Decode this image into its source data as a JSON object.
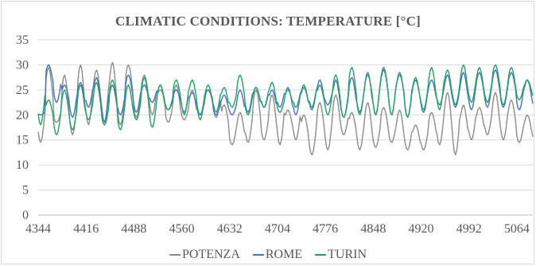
{
  "chart_data": {
    "type": "line",
    "title": "CLIMATIC CONDITIONS: TEMPERATURE [°C]",
    "xlabel": "",
    "ylabel": "",
    "xlim": [
      4344,
      5088
    ],
    "ylim": [
      0,
      35
    ],
    "grid": true,
    "legend_position": "bottom",
    "x_ticks": [
      "4344",
      "4416",
      "4488",
      "4560",
      "4632",
      "4704",
      "4776",
      "4848",
      "4920",
      "4992",
      "5064"
    ],
    "y_ticks": [
      "0",
      "5",
      "10",
      "15",
      "20",
      "25",
      "30",
      "35"
    ],
    "colors": {
      "POTENZA": "#8c8c8c",
      "ROME": "#4472c4",
      "TURIN": "#21a363"
    },
    "daily_extremes_note_free": true,
    "series": [
      {
        "name": "POTENZA",
        "daily_min": [
          14.5,
          19,
          18.5,
          15.5,
          16,
          16.5,
          18,
          19,
          18.5,
          17.5,
          18,
          21,
          19.5,
          20.5,
          20,
          22,
          18.5,
          17.5,
          19,
          18,
          20,
          21,
          19.5,
          16,
          14,
          13.5,
          14.5,
          16,
          15,
          14.5,
          14,
          16,
          15,
          13.5,
          12,
          14,
          13,
          15,
          16,
          14.5,
          13,
          12.5,
          13.5,
          15,
          14.5,
          12.5,
          13,
          12.5,
          13,
          14.5,
          14,
          13,
          12,
          13.5,
          15,
          15.5,
          16,
          14.5,
          15,
          15.5,
          14.5,
          14.5
        ],
        "daily_max": [
          25,
          29.5,
          22,
          28,
          27,
          30,
          30.5,
          29,
          31,
          30.5,
          27.5,
          30,
          27,
          28,
          28.5,
          25,
          24,
          26,
          23,
          25,
          24,
          25,
          25.5,
          22,
          20,
          20.5,
          23,
          25,
          22,
          24,
          25.5,
          21,
          23.5,
          20,
          21,
          22.5,
          23,
          24,
          22,
          20.5,
          22,
          22.5,
          20,
          21.5,
          20,
          21,
          19.5,
          18,
          19,
          20.5,
          24,
          24.5,
          25,
          22,
          23,
          21.5,
          23,
          24.5,
          24,
          23,
          20.5,
          20
        ]
      },
      {
        "name": "ROME",
        "daily_min": [
          20,
          24.5,
          22.5,
          21,
          19.5,
          20,
          21.5,
          19,
          18.5,
          19,
          20,
          21,
          20.5,
          21.5,
          22.5,
          19.5,
          21,
          21.5,
          20.5,
          20,
          20,
          22,
          20,
          19.5,
          20,
          19,
          20.5,
          21,
          21.5,
          20,
          21.5,
          19.5,
          20,
          20.5,
          21,
          20.5,
          22,
          19,
          19.5,
          20,
          20.5,
          19.5,
          20,
          21.5,
          20,
          21,
          19.5,
          21,
          20.5,
          21.5,
          22,
          21,
          21.5,
          20.5,
          21,
          22,
          21.5,
          22,
          21.5,
          22.5,
          21,
          21
        ],
        "daily_max": [
          21,
          30,
          29,
          26,
          27,
          26.5,
          28,
          27.5,
          28,
          26,
          26,
          28,
          27.5,
          26,
          26.5,
          26,
          24,
          25,
          26,
          24.5,
          26,
          25,
          24,
          24,
          23.5,
          25,
          27,
          25.5,
          26,
          25,
          26.5,
          25.5,
          27,
          25.5,
          27.5,
          27,
          26,
          27,
          26,
          27.5,
          28,
          28.5,
          30.5,
          29.5,
          30,
          28.5,
          28,
          27,
          28,
          27,
          27.5,
          28,
          28,
          28.5,
          29,
          28.5,
          29,
          29,
          28.5,
          28.5,
          28,
          27
        ]
      },
      {
        "name": "TURIN",
        "daily_min": [
          18,
          18,
          16,
          17,
          17,
          18,
          19,
          18.5,
          18,
          19.5,
          17,
          18,
          19,
          18.5,
          17.5,
          20,
          21,
          21,
          20,
          20.5,
          19,
          20,
          20.5,
          20,
          21.5,
          21,
          20,
          20.5,
          21.5,
          20,
          20.5,
          21,
          21.5,
          20,
          21.5,
          20.5,
          20,
          20,
          19.5,
          21,
          20,
          21.5,
          20,
          21.5,
          20,
          22,
          19.5,
          20.5,
          21,
          20.5,
          21,
          21.5,
          22,
          21.5,
          22.5,
          22,
          22.5,
          23,
          22,
          22.5,
          23,
          23
        ],
        "daily_max": [
          28.5,
          23,
          24,
          25,
          24,
          26,
          25,
          26.5,
          24,
          27,
          25,
          26,
          25,
          27.5,
          26.5,
          26,
          25,
          27,
          28.5,
          27,
          27.5,
          26,
          27,
          25.5,
          26,
          28,
          26,
          25.5,
          27,
          26.5,
          24.5,
          25,
          26.5,
          26,
          27.5,
          26,
          27,
          28,
          27,
          29.5,
          28.5,
          28,
          30,
          29,
          30,
          28,
          29,
          27.5,
          28.5,
          29.5,
          30.5,
          29,
          29,
          30,
          29.5,
          29.5,
          29,
          30,
          29,
          29.5,
          27.5,
          27
        ]
      }
    ]
  }
}
